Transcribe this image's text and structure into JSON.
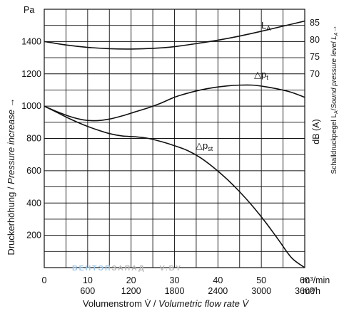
{
  "colors": {
    "curve": "#111111",
    "grid": "#111111",
    "watermark_blue": "#9ec6ea",
    "watermark_gray": "#b8b8b8"
  },
  "chart_data": {
    "type": "line",
    "title": "",
    "left_axis_unit": "Pa",
    "ylabel_left": "Druckerhöhung / Pressure increase →",
    "ylabel_left_plain": "Druckerhöhung / ",
    "ylabel_left_italic": "Pressure increase →",
    "ylim_left": [
      0,
      1600
    ],
    "yticks_left": [
      200,
      400,
      600,
      800,
      1000,
      1200,
      1400
    ],
    "yticks_left_labels": [
      "200",
      "400",
      "600",
      "800",
      "1000",
      "1200",
      "1400"
    ],
    "ylabel_right_unit": "dB (A)",
    "ylabel_right": "Schalldruckpegel LA/Sound pressure level LA →",
    "ylabel_right_plain": "Schalldruckpegel L",
    "ylabel_right_italic": "Sound pressure level L",
    "ylabel_right_sub": "A",
    "ylabel_right_arrow": "→",
    "ylabel_right_sep": "/",
    "yticks_right": [
      70,
      75,
      80,
      85
    ],
    "yticks_right_labels": [
      "70",
      "75",
      "80",
      "85"
    ],
    "xlabel": "Volumenstrom V̇ / Volumetric flow rate V̇",
    "xlabel_plain": "Volumenstrom V̇ / ",
    "xlabel_italic": "Volumetric flow rate V̇",
    "x_unit_1": "m³/min",
    "x_unit_2": "m³/h",
    "xlim": [
      0,
      60
    ],
    "xticks_min": [
      0,
      10,
      20,
      30,
      40,
      50,
      60
    ],
    "xticks_min_labels": [
      "0",
      "10",
      "20",
      "30",
      "40",
      "50",
      "60"
    ],
    "xticks_h": [
      10,
      20,
      30,
      40,
      50,
      60
    ],
    "xticks_h_labels": [
      "600",
      "1200",
      "1800",
      "2400",
      "3000",
      "3600"
    ],
    "grid": true,
    "series": [
      {
        "name": "Δpt",
        "label_symbol": "△",
        "label_text": "p",
        "label_sub": "t",
        "axis": "left",
        "x": [
          0,
          3,
          6,
          9,
          12,
          15,
          18,
          21,
          24,
          27,
          30,
          33,
          36,
          39,
          42,
          45,
          48,
          51,
          54,
          57,
          60
        ],
        "y": [
          1000,
          965,
          935,
          915,
          910,
          920,
          940,
          965,
          990,
          1020,
          1055,
          1080,
          1100,
          1115,
          1125,
          1130,
          1130,
          1120,
          1105,
          1085,
          1055
        ]
      },
      {
        "name": "Δpst",
        "label_symbol": "△",
        "label_text": "p",
        "label_sub": "st",
        "axis": "left",
        "x": [
          0,
          3,
          6,
          9,
          12,
          15,
          18,
          21,
          24,
          27,
          30,
          33,
          36,
          39,
          42,
          45,
          48,
          51,
          54,
          57,
          60
        ],
        "y": [
          1000,
          960,
          920,
          885,
          855,
          830,
          815,
          810,
          800,
          780,
          755,
          725,
          680,
          620,
          550,
          470,
          380,
          280,
          170,
          60,
          -10
        ]
      },
      {
        "name": "LA",
        "label_text": "L",
        "label_sub": "A",
        "axis": "right",
        "x": [
          0,
          5,
          10,
          15,
          20,
          25,
          30,
          35,
          40,
          45,
          50,
          55,
          60
        ],
        "y": [
          79.3,
          78.3,
          77.6,
          77.2,
          77.1,
          77.3,
          77.8,
          78.7,
          79.7,
          80.9,
          82.3,
          83.8,
          85.3
        ]
      }
    ],
    "watermark": {
      "part1": "ВЕНТЭП",
      "part2": "ЗАПАД",
      "part3": "V.BY"
    }
  }
}
